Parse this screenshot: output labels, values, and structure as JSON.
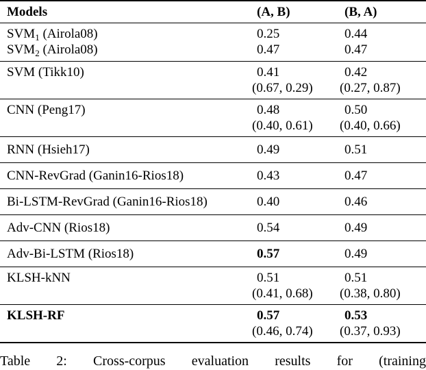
{
  "table": {
    "header": {
      "models": "Models",
      "ab": "(A, B)",
      "ba": "(B, A)"
    },
    "sections": [
      {
        "rows": [
          {
            "model": {
              "base": "SVM",
              "sub": "1",
              "rest": " (Airola08)"
            },
            "ab": {
              "value": "0.25"
            },
            "ba": {
              "value": "0.44"
            }
          },
          {
            "model": {
              "base": "SVM",
              "sub": "2",
              "rest": " (Airola08)"
            },
            "ab": {
              "value": "0.47"
            },
            "ba": {
              "value": "0.47"
            }
          }
        ]
      },
      {
        "rows": [
          {
            "model": {
              "base": "SVM (Tikk10)"
            },
            "ab": {
              "value": "0.41",
              "ci": "(0.67, 0.29)"
            },
            "ba": {
              "value": "0.42",
              "ci": "(0.27, 0.87)"
            }
          }
        ]
      },
      {
        "rows": [
          {
            "model": {
              "base": "CNN (Peng17)"
            },
            "ab": {
              "value": "0.48",
              "ci": "(0.40, 0.61)"
            },
            "ba": {
              "value": "0.50",
              "ci": "(0.40, 0.66)"
            }
          }
        ]
      },
      {
        "rows": [
          {
            "model": {
              "base": "RNN (Hsieh17)"
            },
            "ab": {
              "value": "0.49"
            },
            "ba": {
              "value": "0.51"
            }
          }
        ]
      },
      {
        "rows": [
          {
            "model": {
              "base": "CNN-RevGrad (Ganin16-Rios18)"
            },
            "ab": {
              "value": "0.43"
            },
            "ba": {
              "value": "0.47"
            }
          }
        ]
      },
      {
        "rows": [
          {
            "model": {
              "base": "Bi-LSTM-RevGrad (Ganin16-Rios18)"
            },
            "ab": {
              "value": "0.40"
            },
            "ba": {
              "value": "0.46"
            }
          }
        ]
      },
      {
        "rows": [
          {
            "model": {
              "base": "Adv-CNN (Rios18)"
            },
            "ab": {
              "value": "0.54"
            },
            "ba": {
              "value": "0.49"
            }
          }
        ]
      },
      {
        "rows": [
          {
            "model": {
              "base": "Adv-Bi-LSTM (Rios18)"
            },
            "ab": {
              "value": "0.57"
            },
            "ba": {
              "value": "0.49"
            }
          }
        ]
      },
      {
        "rows": [
          {
            "model": {
              "base": "KLSH-kNN"
            },
            "ab": {
              "value": "0.51",
              "ci": "(0.41, 0.68)"
            },
            "ba": {
              "value": "0.51",
              "ci": "(0.38, 0.80)"
            }
          }
        ]
      },
      {
        "rows": [
          {
            "model": {
              "base": "KLSH-RF"
            },
            "ab": {
              "value": "0.57",
              "ci": "(0.46, 0.74)"
            },
            "ba": {
              "value": "0.53",
              "ci": "(0.37, 0.93)"
            }
          }
        ]
      }
    ]
  },
  "caption": "Table 2: Cross-corpus evaluation results for (training",
  "colors": {
    "text": "#000000",
    "background": "#ffffff",
    "rule": "#000000"
  }
}
